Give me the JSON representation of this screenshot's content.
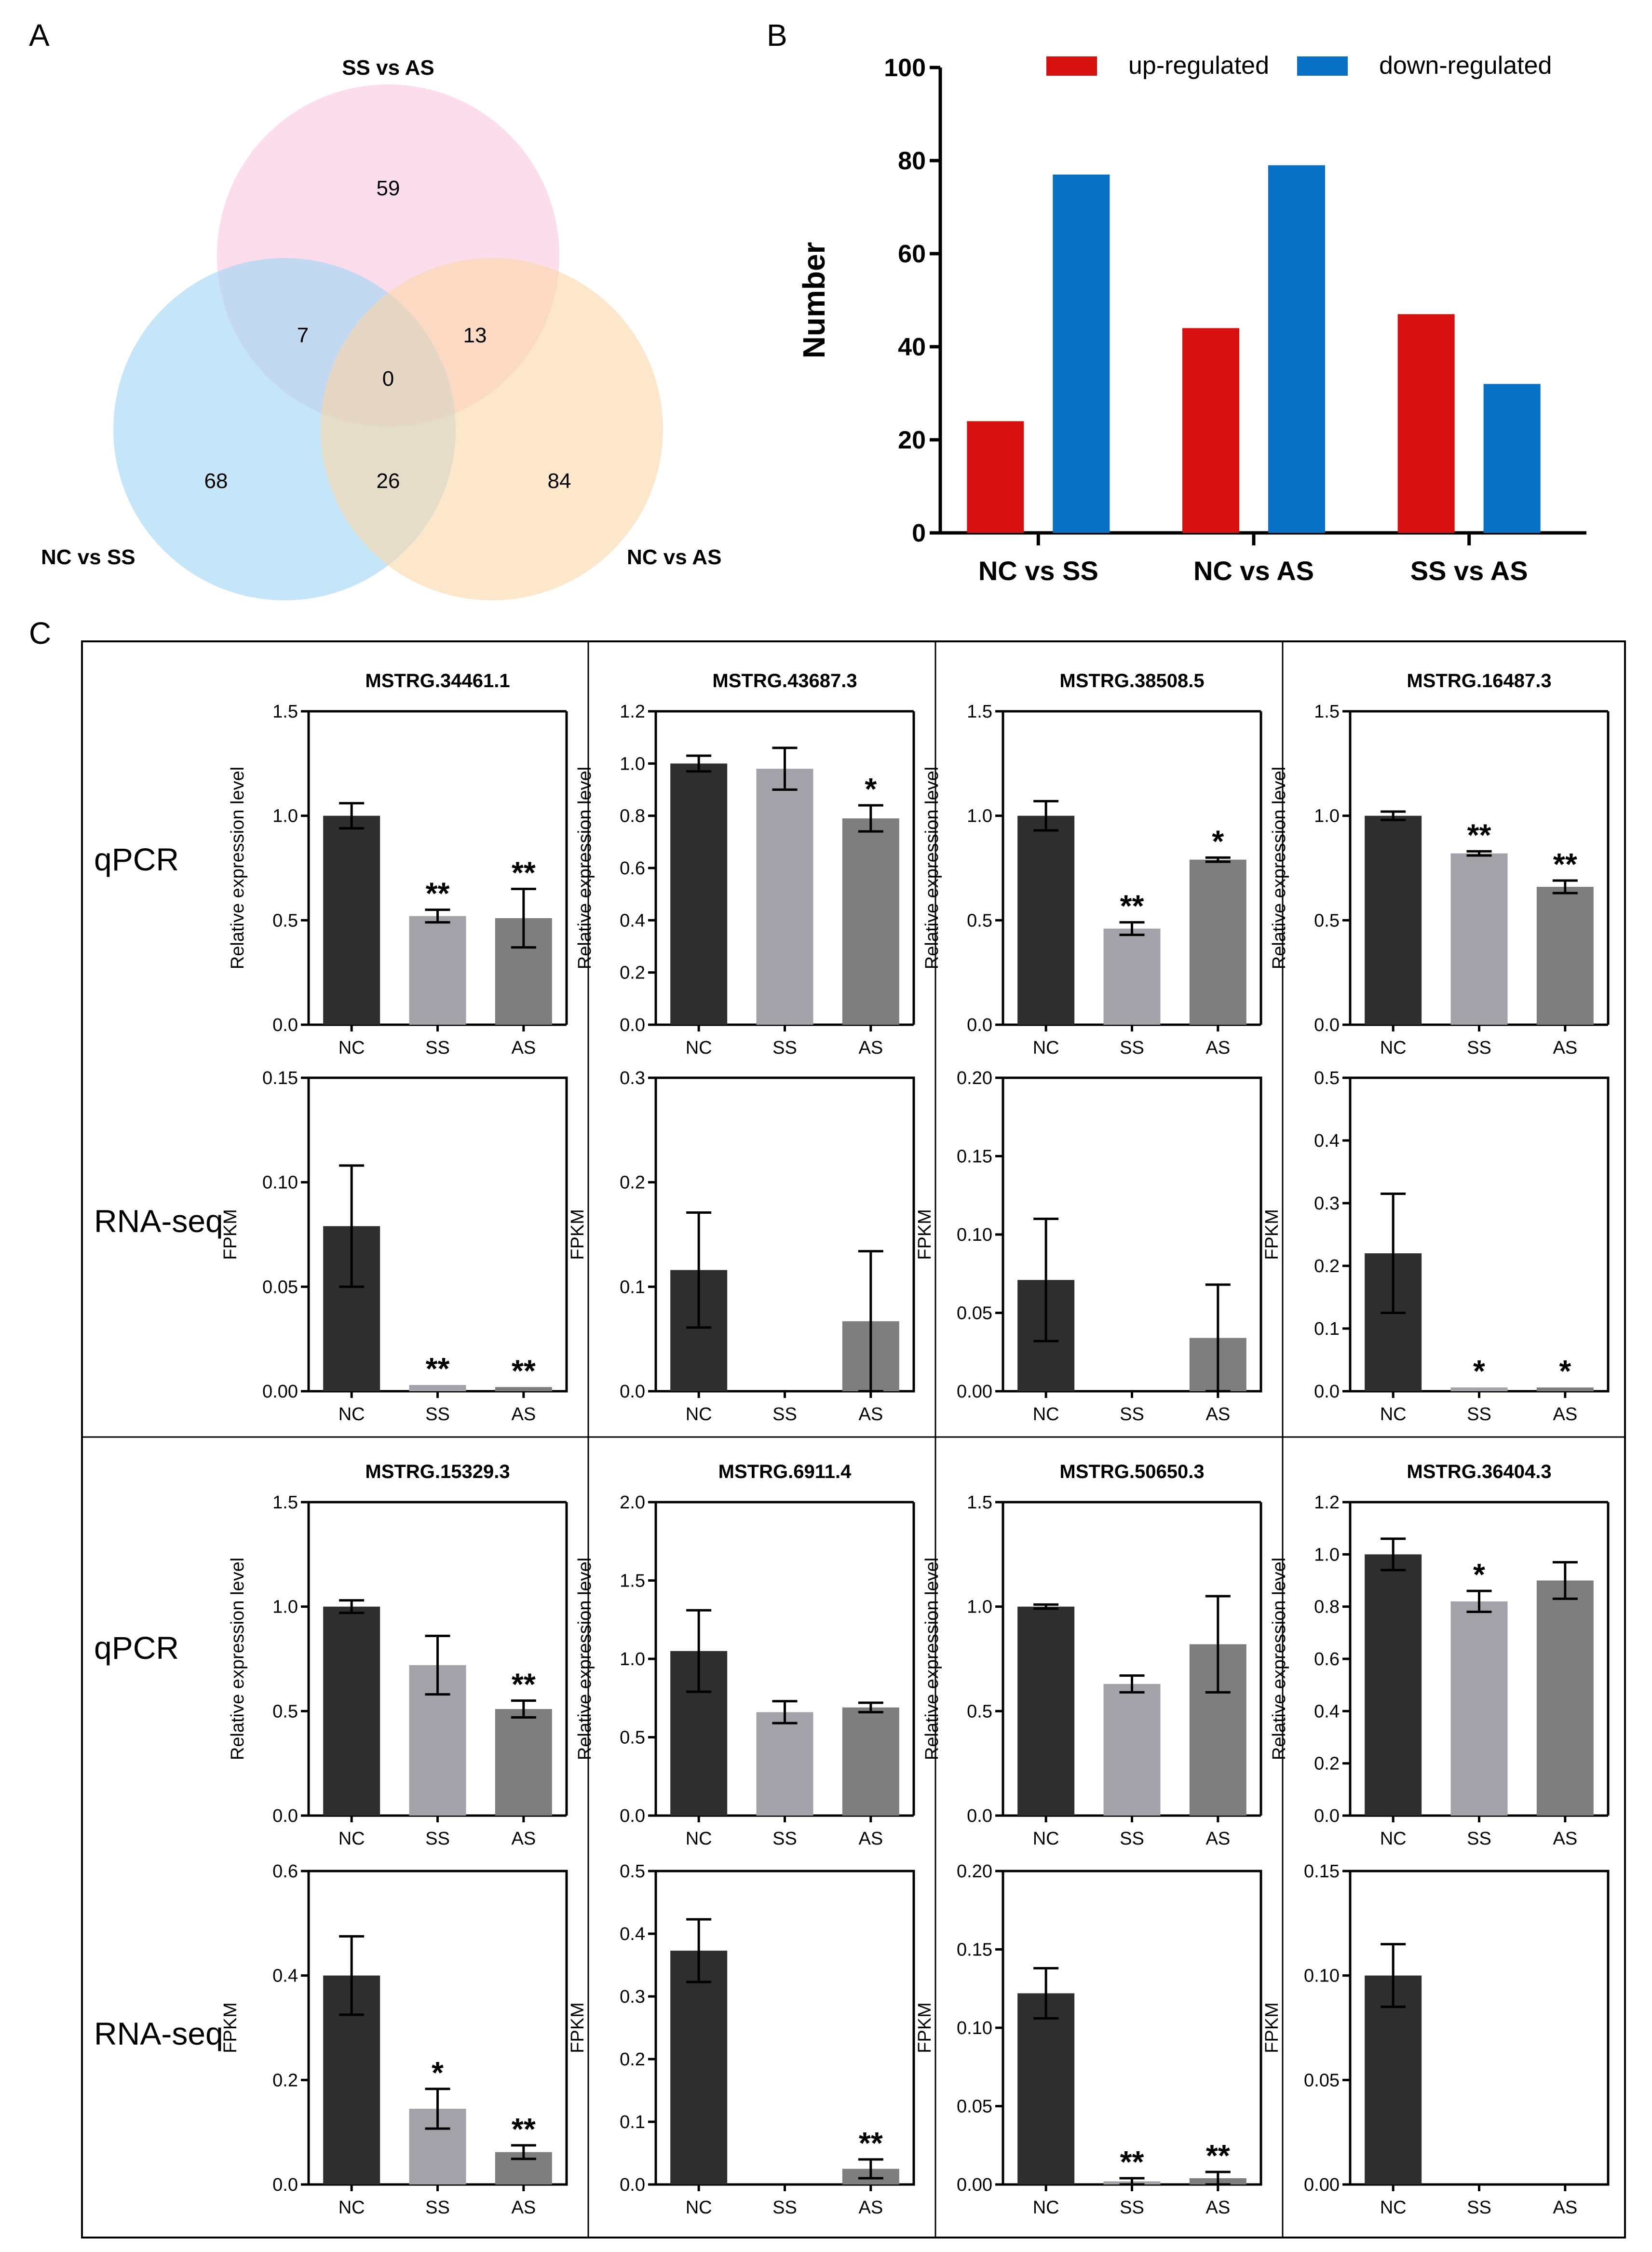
{
  "panel_labels": {
    "a": "A",
    "b": "B",
    "c": "C"
  },
  "venn": {
    "sets": [
      {
        "name": "SS vs AS",
        "color": "#f9c7dd"
      },
      {
        "name": "NC vs SS",
        "color": "#9fd6f5"
      },
      {
        "name": "NC vs AS",
        "color": "#fbd7a6"
      }
    ],
    "regions": {
      "ss_only": "59",
      "ncss_ssas": "7",
      "ssas_ncas": "13",
      "all": "0",
      "ncss_only": "68",
      "ncss_ncas": "26",
      "ncas_only": "84"
    }
  },
  "row_labels": {
    "qpcr": "qPCR",
    "rnaseq": "RNA-seq"
  },
  "chart_data": [
    {
      "id": "deg-counts",
      "type": "bar",
      "categories": [
        "NC vs SS",
        "NC vs AS",
        "SS vs AS"
      ],
      "series": [
        {
          "name": "up-regulated",
          "values": [
            24,
            44,
            47
          ],
          "color": "#d60f0f"
        },
        {
          "name": "down-regulated",
          "values": [
            77,
            79,
            32
          ],
          "color": "#0870c4"
        }
      ],
      "ylabel": "Number",
      "ylim": [
        0,
        100
      ],
      "yticks": [
        "0",
        "20",
        "40",
        "60",
        "80",
        "100"
      ],
      "legend": "top"
    },
    {
      "id": "q1",
      "type": "bar",
      "title": "MSTRG.34461.1",
      "ylabel": "Relative expression level",
      "categories": [
        "NC",
        "SS",
        "AS"
      ],
      "values": [
        1.0,
        0.52,
        0.51
      ],
      "errors": [
        0.06,
        0.03,
        0.14
      ],
      "significance": [
        "",
        "**",
        "**"
      ],
      "ylim": [
        0,
        1.5
      ],
      "yticks": [
        "0.0",
        "0.5",
        "1.0",
        "1.5"
      ]
    },
    {
      "id": "q2",
      "type": "bar",
      "title": "MSTRG.43687.3",
      "ylabel": "Relative expression level",
      "categories": [
        "NC",
        "SS",
        "AS"
      ],
      "values": [
        1.0,
        0.98,
        0.79
      ],
      "errors": [
        0.03,
        0.08,
        0.05
      ],
      "significance": [
        "",
        "",
        "*"
      ],
      "ylim": [
        0,
        1.2
      ],
      "yticks": [
        "0.0",
        "0.2",
        "0.4",
        "0.6",
        "0.8",
        "1.0",
        "1.2"
      ]
    },
    {
      "id": "q3",
      "type": "bar",
      "title": "MSTRG.38508.5",
      "ylabel": "Relative expression level",
      "categories": [
        "NC",
        "SS",
        "AS"
      ],
      "values": [
        1.0,
        0.46,
        0.79
      ],
      "errors": [
        0.07,
        0.03,
        0.01
      ],
      "significance": [
        "",
        "**",
        "*"
      ],
      "ylim": [
        0,
        1.5
      ],
      "yticks": [
        "0.0",
        "0.5",
        "1.0",
        "1.5"
      ]
    },
    {
      "id": "q4",
      "type": "bar",
      "title": "MSTRG.16487.3",
      "ylabel": "Relative expression level",
      "categories": [
        "NC",
        "SS",
        "AS"
      ],
      "values": [
        1.0,
        0.82,
        0.66
      ],
      "errors": [
        0.02,
        0.01,
        0.03
      ],
      "significance": [
        "",
        "**",
        "**"
      ],
      "ylim": [
        0,
        1.5
      ],
      "yticks": [
        "0.0",
        "0.5",
        "1.0",
        "1.5"
      ]
    },
    {
      "id": "r1",
      "type": "bar",
      "ylabel": "FPKM",
      "categories": [
        "NC",
        "SS",
        "AS"
      ],
      "values": [
        0.079,
        0.003,
        0.002
      ],
      "errors": [
        0.029,
        0.0,
        0.0
      ],
      "significance": [
        "",
        "**",
        "**"
      ],
      "ylim": [
        0,
        0.15
      ],
      "yticks": [
        "0.00",
        "0.05",
        "0.10",
        "0.15"
      ]
    },
    {
      "id": "r2",
      "type": "bar",
      "ylabel": "FPKM",
      "categories": [
        "NC",
        "SS",
        "AS"
      ],
      "values": [
        0.116,
        0.0,
        0.067
      ],
      "errors": [
        0.055,
        0.0,
        0.067
      ],
      "significance": [
        "",
        "",
        ""
      ],
      "ylim": [
        0,
        0.3
      ],
      "yticks": [
        "0.0",
        "0.1",
        "0.2",
        "0.3"
      ]
    },
    {
      "id": "r3",
      "type": "bar",
      "ylabel": "FPKM",
      "categories": [
        "NC",
        "SS",
        "AS"
      ],
      "values": [
        0.071,
        0.0,
        0.034
      ],
      "errors": [
        0.039,
        0.0,
        0.034
      ],
      "significance": [
        "",
        "",
        ""
      ],
      "ylim": [
        0,
        0.2
      ],
      "yticks": [
        "0.00",
        "0.05",
        "0.10",
        "0.15",
        "0.20"
      ]
    },
    {
      "id": "r4",
      "type": "bar",
      "ylabel": "FPKM",
      "categories": [
        "NC",
        "SS",
        "AS"
      ],
      "values": [
        0.22,
        0.006,
        0.006
      ],
      "errors": [
        0.095,
        0.0,
        0.0
      ],
      "significance": [
        "",
        "*",
        "*"
      ],
      "ylim": [
        0,
        0.5
      ],
      "yticks": [
        "0.0",
        "0.1",
        "0.2",
        "0.3",
        "0.4",
        "0.5"
      ]
    },
    {
      "id": "q5",
      "type": "bar",
      "title": "MSTRG.15329.3",
      "ylabel": "Relative expression level",
      "categories": [
        "NC",
        "SS",
        "AS"
      ],
      "values": [
        1.0,
        0.72,
        0.51
      ],
      "errors": [
        0.03,
        0.14,
        0.04
      ],
      "significance": [
        "",
        "",
        "**"
      ],
      "ylim": [
        0,
        1.5
      ],
      "yticks": [
        "0.0",
        "0.5",
        "1.0",
        "1.5"
      ]
    },
    {
      "id": "q6",
      "type": "bar",
      "title": "MSTRG.6911.4",
      "ylabel": "Relative expression level",
      "categories": [
        "NC",
        "SS",
        "AS"
      ],
      "values": [
        1.05,
        0.66,
        0.69
      ],
      "errors": [
        0.26,
        0.07,
        0.03
      ],
      "significance": [
        "",
        "",
        ""
      ],
      "ylim": [
        0,
        2.0
      ],
      "yticks": [
        "0.0",
        "0.5",
        "1.0",
        "1.5",
        "2.0"
      ]
    },
    {
      "id": "q7",
      "type": "bar",
      "title": "MSTRG.50650.3",
      "ylabel": "Relative expression level",
      "categories": [
        "NC",
        "SS",
        "AS"
      ],
      "values": [
        1.0,
        0.63,
        0.82
      ],
      "errors": [
        0.01,
        0.04,
        0.23
      ],
      "significance": [
        "",
        "",
        ""
      ],
      "ylim": [
        0,
        1.5
      ],
      "yticks": [
        "0.0",
        "0.5",
        "1.0",
        "1.5"
      ]
    },
    {
      "id": "q8",
      "type": "bar",
      "title": "MSTRG.36404.3",
      "ylabel": "Relative expression level",
      "categories": [
        "NC",
        "SS",
        "AS"
      ],
      "values": [
        1.0,
        0.82,
        0.9
      ],
      "errors": [
        0.06,
        0.04,
        0.07
      ],
      "significance": [
        "",
        "*",
        ""
      ],
      "ylim": [
        0,
        1.2
      ],
      "yticks": [
        "0.0",
        "0.2",
        "0.4",
        "0.6",
        "0.8",
        "1.0",
        "1.2"
      ]
    },
    {
      "id": "r5",
      "type": "bar",
      "ylabel": "FPKM",
      "categories": [
        "NC",
        "SS",
        "AS"
      ],
      "values": [
        0.4,
        0.145,
        0.062
      ],
      "errors": [
        0.075,
        0.038,
        0.013
      ],
      "significance": [
        "",
        "*",
        "**"
      ],
      "ylim": [
        0,
        0.6
      ],
      "yticks": [
        "0.0",
        "0.2",
        "0.4",
        "0.6"
      ]
    },
    {
      "id": "r6",
      "type": "bar",
      "ylabel": "FPKM",
      "categories": [
        "NC",
        "SS",
        "AS"
      ],
      "values": [
        0.373,
        0.0,
        0.025
      ],
      "errors": [
        0.05,
        0.0,
        0.015
      ],
      "significance": [
        "",
        "",
        "**"
      ],
      "ylim": [
        0,
        0.5
      ],
      "yticks": [
        "0.0",
        "0.1",
        "0.2",
        "0.3",
        "0.4",
        "0.5"
      ]
    },
    {
      "id": "r7",
      "type": "bar",
      "ylabel": "FPKM",
      "categories": [
        "NC",
        "SS",
        "AS"
      ],
      "values": [
        0.122,
        0.002,
        0.004
      ],
      "errors": [
        0.016,
        0.002,
        0.004
      ],
      "significance": [
        "",
        "**",
        "**"
      ],
      "ylim": [
        0,
        0.2
      ],
      "yticks": [
        "0.00",
        "0.05",
        "0.10",
        "0.15",
        "0.20"
      ]
    },
    {
      "id": "r8",
      "type": "bar",
      "ylabel": "FPKM",
      "categories": [
        "NC",
        "SS",
        "AS"
      ],
      "values": [
        0.1,
        0.0,
        0.0
      ],
      "errors": [
        0.015,
        0.0,
        0.0
      ],
      "significance": [
        "",
        "",
        ""
      ],
      "ylim": [
        0,
        0.15
      ],
      "yticks": [
        "0.00",
        "0.05",
        "0.10",
        "0.15"
      ]
    }
  ]
}
